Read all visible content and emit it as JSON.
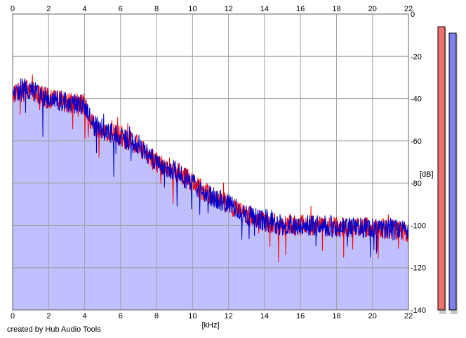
{
  "credit": "created by Hub Audio Tools",
  "chart_data": {
    "type": "area",
    "xlabel": "[kHz]",
    "ylabel": "[dB]",
    "xlim": [
      0,
      22
    ],
    "ylim": [
      -140,
      0
    ],
    "x_ticks": [
      0,
      2,
      4,
      6,
      8,
      10,
      12,
      14,
      16,
      18,
      20,
      22
    ],
    "y_ticks": [
      0,
      -20,
      -40,
      -60,
      -80,
      -100,
      -120,
      -140
    ],
    "grid": true,
    "colors": {
      "red_line": "#ff0000",
      "blue_line": "#0000cc",
      "red_fill": "#f5b8b8",
      "blue_fill": "#c0c0ff",
      "grid": "#a0a0a0",
      "frame": "#606060",
      "meter_red": "#f07070",
      "meter_blue": "#8080ee"
    },
    "envelope": {
      "x": [
        0,
        0.5,
        1,
        2,
        3,
        4,
        4.4,
        5,
        6,
        7,
        8,
        9,
        10,
        11,
        12,
        13,
        14,
        15,
        16,
        17,
        18,
        19,
        20,
        21,
        22
      ],
      "y": [
        -38,
        -35,
        -36,
        -40,
        -42,
        -43,
        -52,
        -55,
        -58,
        -62,
        -70,
        -74,
        -80,
        -86,
        -90,
        -95,
        -98,
        -100,
        -100,
        -100,
        -101,
        -101,
        -101,
        -102,
        -103
      ]
    },
    "series": [
      {
        "color_key": "red",
        "amplitude": 5
      },
      {
        "color_key": "blue",
        "amplitude": 5
      }
    ],
    "meters": [
      {
        "channel": "red",
        "level_db": -6
      },
      {
        "channel": "blue",
        "level_db": -9
      }
    ]
  }
}
